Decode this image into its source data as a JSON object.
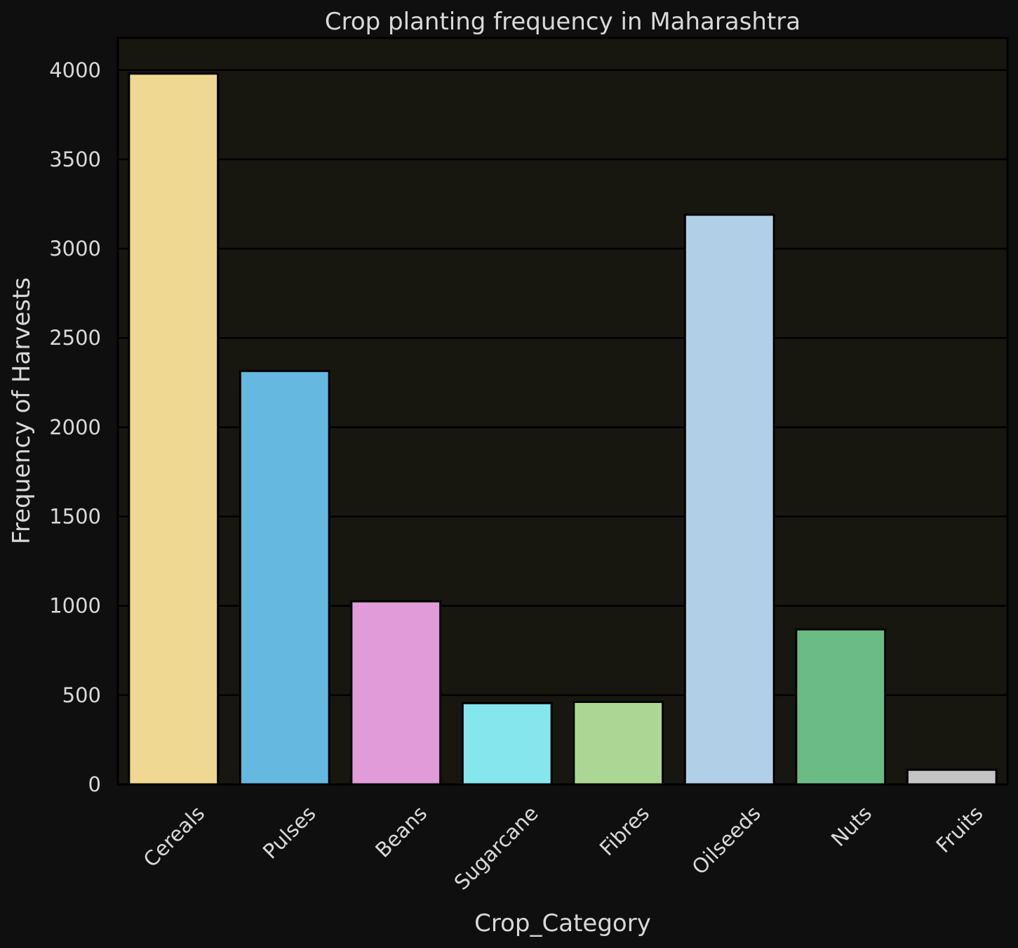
{
  "chart_data": {
    "type": "bar",
    "title": "Crop planting frequency in Maharashtra",
    "xlabel": "Crop_Category",
    "ylabel": "Frequency of Harvests",
    "categories": [
      "Cereals",
      "Pulses",
      "Beans",
      "Sugarcane",
      "Fibres",
      "Oilseeds",
      "Nuts",
      "Fruits"
    ],
    "values": [
      3980,
      2315,
      1025,
      455,
      462,
      3190,
      868,
      82
    ],
    "colors": [
      "#efd891",
      "#65b8df",
      "#e09bd8",
      "#86e6ee",
      "#acd694",
      "#b1d0e8",
      "#6bbb84",
      "#c4c4c4"
    ],
    "ylim": [
      0,
      4180
    ],
    "yticks": [
      0,
      500,
      1000,
      1500,
      2000,
      2500,
      3000,
      3500,
      4000
    ],
    "grid": "y",
    "background": "#0f0f0f",
    "plot_background": "#171710"
  }
}
